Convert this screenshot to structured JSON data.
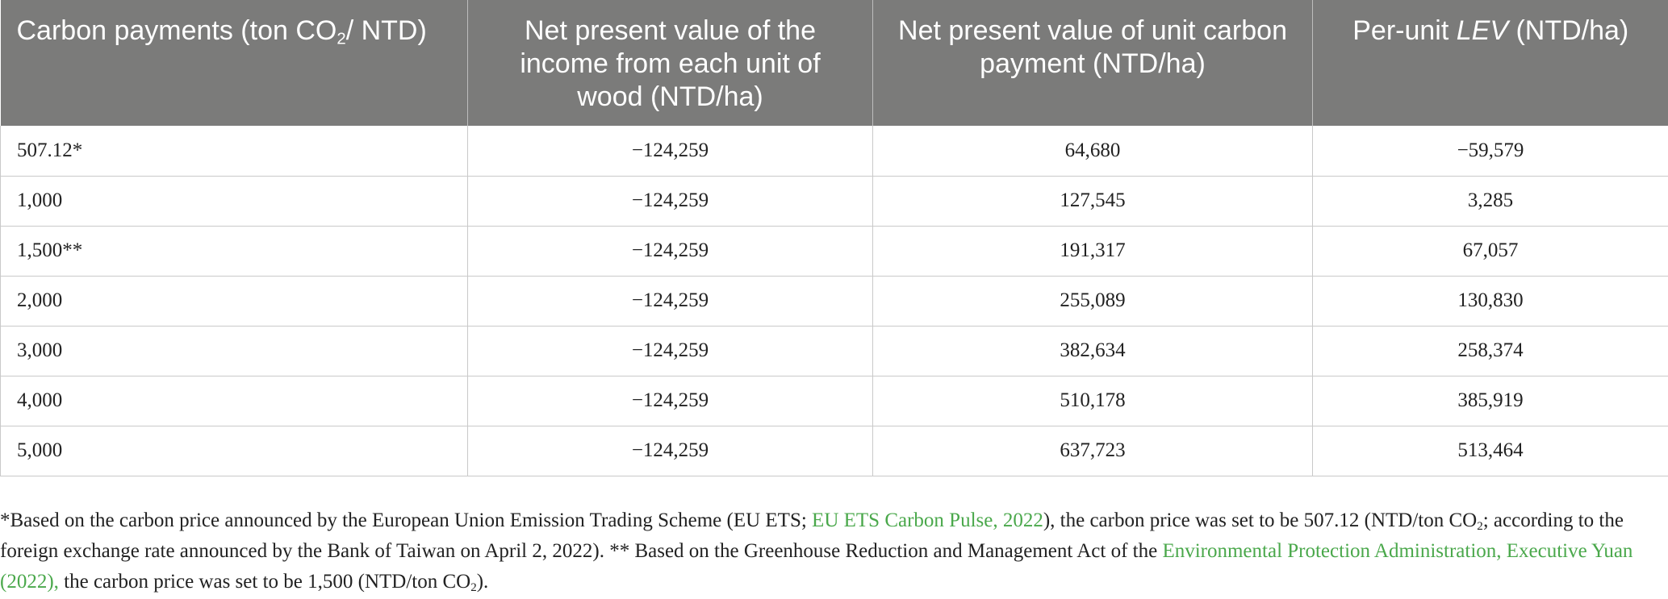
{
  "table": {
    "headers": [
      {
        "pre": "Carbon payments (ton CO",
        "sub": "2",
        "post": "/ NTD)"
      },
      {
        "text": "Net present value of the income from each unit of wood (NTD/ha)"
      },
      {
        "text": "Net present value of unit carbon payment (NTD/ha)"
      },
      {
        "pre": "Per-unit ",
        "em": "LEV",
        "post": " (NTD/ha)"
      }
    ],
    "rows": [
      [
        "507.12*",
        "−124,259",
        "64,680",
        "−59,579"
      ],
      [
        "1,000",
        "−124,259",
        "127,545",
        "3,285"
      ],
      [
        "1,500**",
        "−124,259",
        "191,317",
        "67,057"
      ],
      [
        "2,000",
        "−124,259",
        "255,089",
        "130,830"
      ],
      [
        "3,000",
        "−124,259",
        "382,634",
        "258,374"
      ],
      [
        "4,000",
        "−124,259",
        "510,178",
        "385,919"
      ],
      [
        "5,000",
        "−124,259",
        "637,723",
        "513,464"
      ]
    ]
  },
  "footnote": {
    "p1": "*Based on the carbon price announced by the European Union Emission Trading Scheme (EU ETS; ",
    "link1": "EU ETS Carbon Pulse, 2022",
    "p2": "), the carbon price was set to be 507.12 (NTD/ton CO",
    "sub1": "2",
    "p3": "; according to the foreign exchange rate announced by the Bank of Taiwan on April 2, 2022). ** Based on the Greenhouse Reduction and Management Act of the ",
    "link2": "Environmental Protection Administration, Executive Yuan (2022),",
    "p4": " the carbon price was set to be 1,500 (NTD/ton CO",
    "sub2": "2",
    "p5": ")."
  },
  "colors": {
    "header_bg": "#7b7b7a",
    "link": "#4aa84b"
  }
}
